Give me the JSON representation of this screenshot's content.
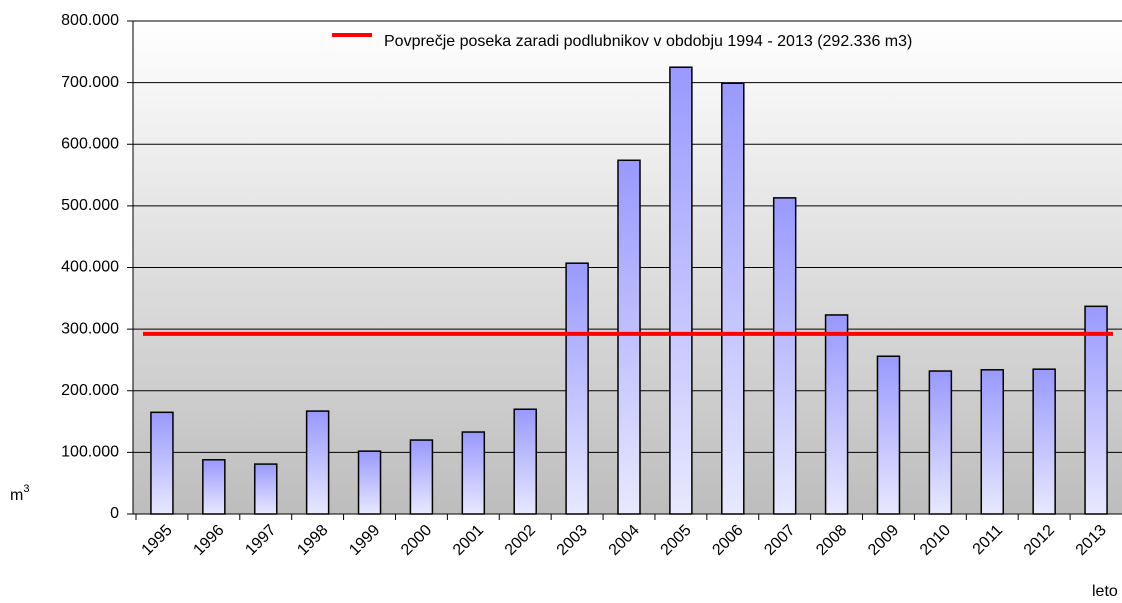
{
  "chart_data": {
    "type": "bar",
    "categories": [
      "1995",
      "1996",
      "1997",
      "1998",
      "1999",
      "2000",
      "2001",
      "2002",
      "2003",
      "2004",
      "2005",
      "2006",
      "2007",
      "2008",
      "2009",
      "2010",
      "2011",
      "2012",
      "2013"
    ],
    "values": [
      165000,
      88000,
      81000,
      167000,
      102000,
      120000,
      133000,
      170000,
      407000,
      574000,
      725000,
      699000,
      513000,
      323000,
      256000,
      232000,
      234000,
      235000,
      337000
    ],
    "color": "#9999ff",
    "average": {
      "name": "Povprečje poseka zaradi podlubnikov v obdobju 1994 - 2013  (292.336 m3)",
      "value": 292336,
      "color": "#ff0000"
    },
    "y_label": {
      "base": "m",
      "sup": "3"
    },
    "x_label": "leto",
    "ylim": [
      0,
      800000
    ],
    "yticks": [
      0,
      {
        "value": 100000,
        "label": "100.000"
      },
      {
        "value": 200000,
        "label": "200.000"
      },
      {
        "value": 300000,
        "label": "300.000"
      },
      {
        "value": 400000,
        "label": "400.000"
      },
      {
        "value": 500000,
        "label": "500.000"
      },
      {
        "value": 600000,
        "label": "600.000"
      },
      {
        "value": 700000,
        "label": "700.000"
      },
      {
        "value": 800000,
        "label": "800.000"
      }
    ],
    "grid": true
  }
}
